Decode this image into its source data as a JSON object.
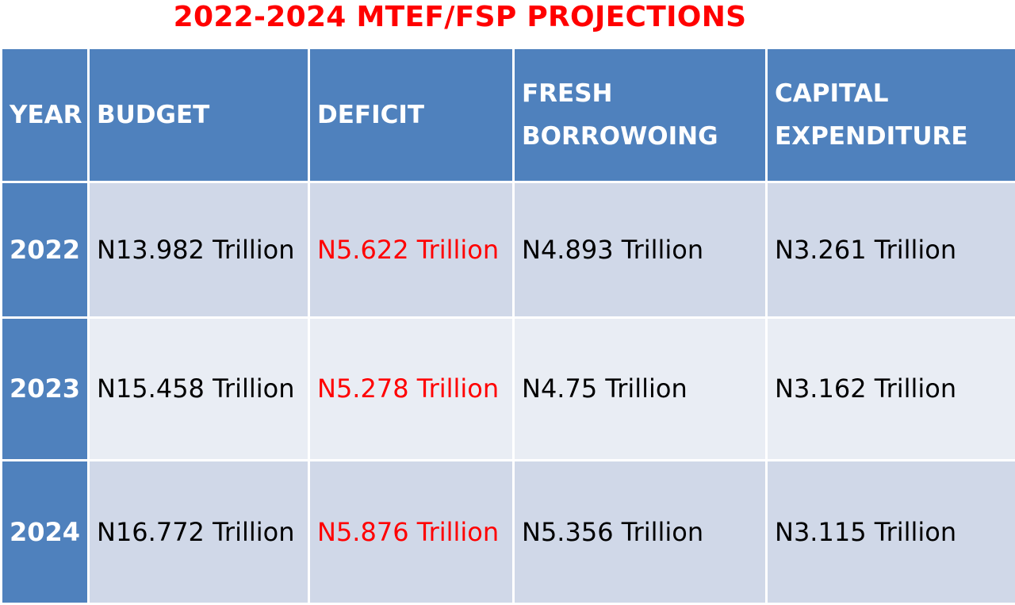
{
  "title": "2022-2024 MTEF/FSP PROJECTIONS",
  "colors": {
    "title": "#ff0000",
    "header_bg": "#4f81bd",
    "row_odd_bg": "#d0d8e8",
    "row_even_bg": "#e9edf4",
    "deficit_text": "#ff0000"
  },
  "headers": {
    "year": "YEAR",
    "budget": "BUDGET",
    "deficit": "DEFICIT",
    "fresh_line1": "FRESH",
    "fresh_line2": "BORROWOING",
    "capital_line1": "CAPITAL",
    "capital_line2": "EXPENDITURE"
  },
  "rows": [
    {
      "year": "2022",
      "budget": "N13.982 Trillion",
      "deficit": "N5.622 Trillion",
      "fresh_borrowing": "N4.893 Trillion",
      "capital_expenditure": "N3.261 Trillion"
    },
    {
      "year": "2023",
      "budget": "N15.458 Trillion",
      "deficit": "N5.278 Trillion",
      "fresh_borrowing": "N4.75 Trillion",
      "capital_expenditure": "N3.162 Trillion"
    },
    {
      "year": "2024",
      "budget": "N16.772 Trillion",
      "deficit": "N5.876 Trillion",
      "fresh_borrowing": "N5.356 Trillion",
      "capital_expenditure": "N3.115 Trillion"
    }
  ]
}
